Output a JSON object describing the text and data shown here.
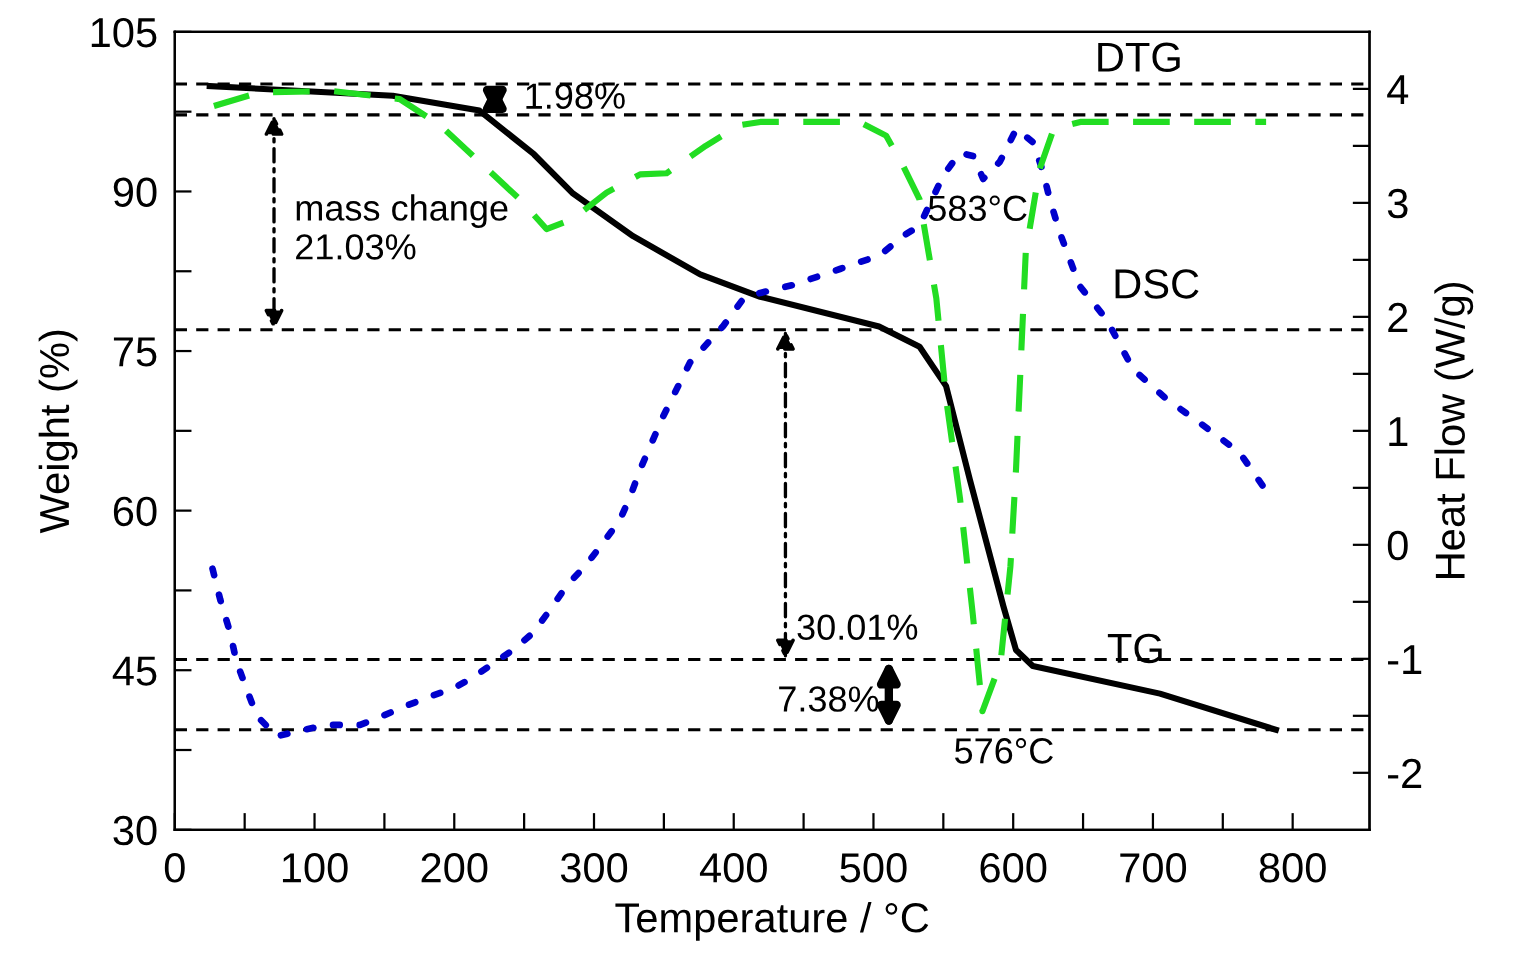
{
  "chart_data": {
    "type": "line",
    "xlabel": "Temperature / °C",
    "ylabel": "Weight (%)",
    "y2label": "Heat Flow (W/g)",
    "xlim": [
      0,
      855
    ],
    "ylim": [
      30,
      105
    ],
    "y2lim": [
      -2.5,
      4.5
    ],
    "xticks": [
      0,
      {
        "value": 50,
        "label": null
      },
      100,
      {
        "value": 150,
        "label": null
      },
      200,
      {
        "value": 250,
        "label": null
      },
      300,
      {
        "value": 350,
        "label": null
      },
      400,
      {
        "value": 450,
        "label": null
      },
      500,
      {
        "value": 550,
        "label": null
      },
      600,
      {
        "value": 650,
        "label": null
      },
      700,
      {
        "value": 750,
        "label": null
      },
      800
    ],
    "yticks": [
      30,
      {
        "value": 37.5,
        "label": null
      },
      45,
      {
        "value": 52.5,
        "label": null
      },
      60,
      {
        "value": 67.5,
        "label": null
      },
      75,
      {
        "value": 82.5,
        "label": null
      },
      90,
      {
        "value": 97.5,
        "label": null
      },
      105
    ],
    "y2ticks": [
      -2,
      {
        "value": -1.5,
        "label": null
      },
      -1,
      {
        "value": -0.5,
        "label": null
      },
      0,
      {
        "value": 0.5,
        "label": null
      },
      1,
      {
        "value": 1.5,
        "label": null
      },
      2,
      {
        "value": 2.5,
        "label": null
      },
      3,
      {
        "value": 3.5,
        "label": null
      },
      4
    ],
    "grid": false,
    "series": [
      {
        "name": "TG",
        "color": "#000000",
        "line_style": "solid",
        "x": [
          25,
          156,
          218,
          257,
          285,
          328,
          376,
          419,
          504,
          533,
          552,
          569,
          593,
          602,
          614,
          705,
          788
        ],
        "values": [
          99.9,
          99.0,
          97.6,
          93.5,
          89.8,
          85.8,
          82.2,
          80.1,
          77.3,
          75.4,
          71.7,
          62.9,
          51.0,
          46.9,
          45.4,
          42.8,
          39.4
        ]
      },
      {
        "name": "DSC",
        "color": "#0000cc",
        "line_style": "dotted",
        "axis": "y2",
        "x": [
          27,
          32.5,
          39.6,
          44,
          51.5,
          58.7,
          73,
          89.7,
          108.7,
          132.6,
          149,
          166,
          185,
          199.4,
          213.7,
          228,
          242.3,
          256.6,
          268.5,
          280.4,
          294.7,
          306.7,
          318.6,
          325.8,
          333,
          349.6,
          368.7,
          392.5,
          406.9,
          419,
          442.6,
          476,
          504.6,
          521.3,
          533,
          550,
          561.8,
          571.4,
          578.5,
          590.4,
          602.3,
          614.3,
          621.4,
          626.2,
          633.3,
          647.6,
          666.7,
          685.8,
          709.6,
          733.5,
          762,
          783.5
        ],
        "values": [
          -0.21,
          -0.48,
          -0.77,
          -1.02,
          -1.27,
          -1.5,
          -1.68,
          -1.63,
          -1.58,
          -1.58,
          -1.5,
          -1.41,
          -1.32,
          -1.26,
          -1.16,
          -1.04,
          -0.92,
          -0.77,
          -0.57,
          -0.36,
          -0.17,
          0.02,
          0.22,
          0.42,
          0.66,
          1.13,
          1.6,
          1.92,
          2.16,
          2.21,
          2.28,
          2.42,
          2.54,
          2.71,
          2.8,
          3.24,
          3.44,
          3.41,
          3.21,
          3.36,
          3.65,
          3.53,
          3.27,
          3.03,
          2.74,
          2.27,
          1.98,
          1.54,
          1.28,
          1.07,
          0.81,
          0.43
        ]
      },
      {
        "name": "DTG",
        "color": "#22dd22",
        "line_style": "dashed",
        "axis": "y2",
        "x": [
          28,
          61,
          114,
          161,
          190,
          218,
          247,
          266,
          285,
          309,
          333,
          352,
          380,
          404,
          419,
          490,
          509,
          521,
          533,
          545,
          552,
          562,
          571,
          578,
          591,
          598,
          602,
          609,
          619,
          629,
          648,
          781
        ],
        "values": [
          3.85,
          3.97,
          3.98,
          3.91,
          3.68,
          3.36,
          3.03,
          2.77,
          2.86,
          3.09,
          3.25,
          3.26,
          3.5,
          3.68,
          3.71,
          3.71,
          3.59,
          3.33,
          3.03,
          2.16,
          1.28,
          0.4,
          -0.6,
          -1.46,
          -1.03,
          -0.19,
          0.66,
          2.57,
          3.3,
          3.65,
          3.71,
          3.71
        ]
      }
    ],
    "ref_lines": [
      {
        "axis": "y",
        "value": 100.1,
        "color": "#000000",
        "line_style": "dashed"
      },
      {
        "axis": "y",
        "value": 97.2,
        "color": "#000000",
        "line_style": "dashed"
      },
      {
        "axis": "y",
        "value": 77.0,
        "color": "#000000",
        "line_style": "dashed"
      },
      {
        "axis": "y",
        "value": 46.0,
        "color": "#000000",
        "line_style": "dashed"
      },
      {
        "axis": "y",
        "value": 39.4,
        "color": "#000000",
        "line_style": "dashed"
      }
    ],
    "annotations": [
      {
        "text": "1.98%",
        "x": 229,
        "y": 97.2
      },
      {
        "text": "mass change\n21.03%",
        "x": 71,
        "y": 77.0
      },
      {
        "text": "30.01%",
        "x": 437,
        "y": 46.0
      },
      {
        "text": "7.38%",
        "x": 511,
        "y": 39.4
      },
      "583°C",
      "576°C"
    ]
  }
}
